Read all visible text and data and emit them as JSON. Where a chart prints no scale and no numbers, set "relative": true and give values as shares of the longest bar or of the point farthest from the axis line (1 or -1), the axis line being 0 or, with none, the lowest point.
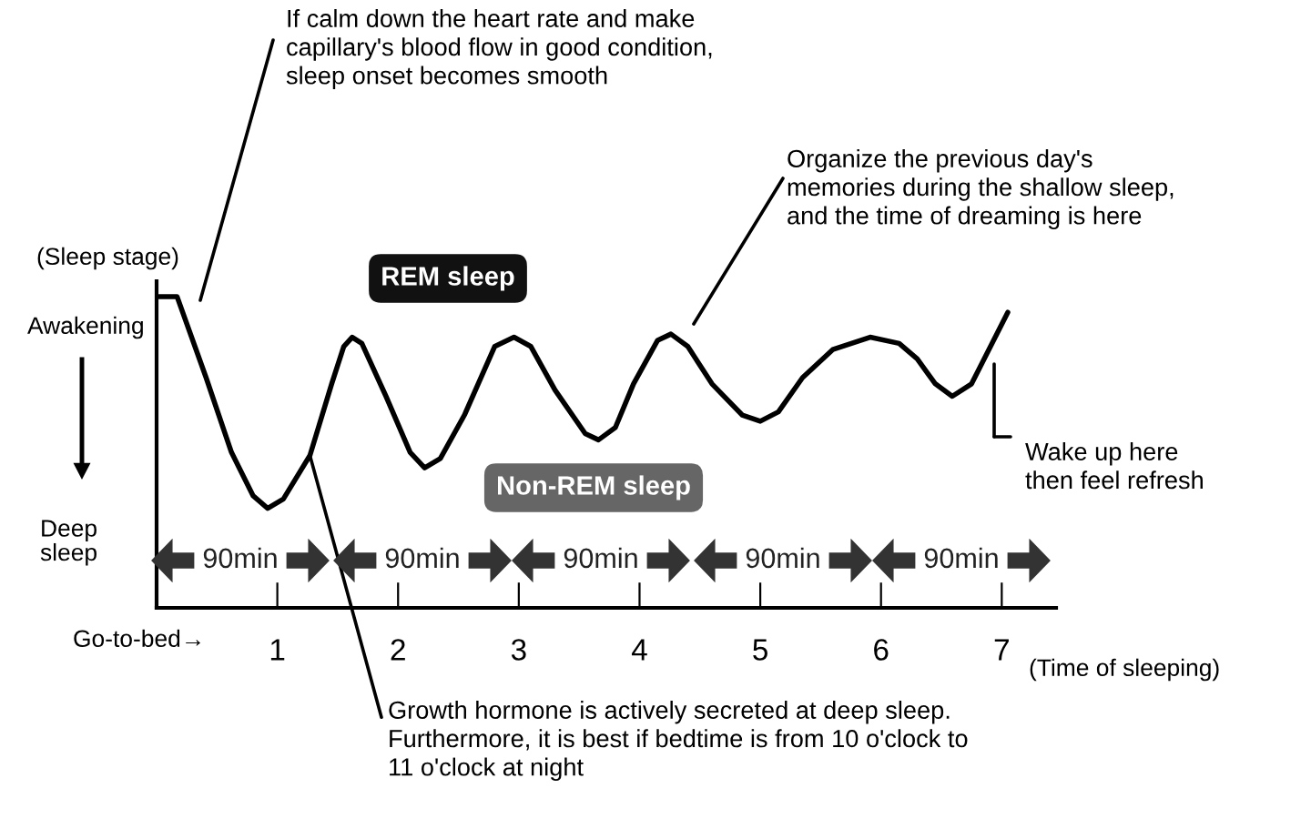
{
  "chart_data": {
    "type": "line",
    "relative": true,
    "color": "#000000",
    "x": [
      0.02,
      0.17,
      0.41,
      0.62,
      0.8,
      0.92,
      1.05,
      1.27,
      1.45,
      1.55,
      1.62,
      1.7,
      1.9,
      2.1,
      2.22,
      2.35,
      2.55,
      2.8,
      2.96,
      3.1,
      3.3,
      3.55,
      3.66,
      3.8,
      3.95,
      4.15,
      4.26,
      4.4,
      4.6,
      4.85,
      5.0,
      5.15,
      5.35,
      5.6,
      5.91,
      6.15,
      6.3,
      6.45,
      6.59,
      6.75,
      7.05
    ],
    "values": [
      1.0,
      1.0,
      0.74,
      0.5,
      0.36,
      0.32,
      0.35,
      0.49,
      0.72,
      0.84,
      0.87,
      0.85,
      0.68,
      0.5,
      0.45,
      0.48,
      0.62,
      0.84,
      0.87,
      0.84,
      0.7,
      0.56,
      0.54,
      0.58,
      0.72,
      0.86,
      0.88,
      0.84,
      0.72,
      0.62,
      0.6,
      0.63,
      0.74,
      0.83,
      0.87,
      0.85,
      0.8,
      0.72,
      0.68,
      0.72,
      0.95
    ],
    "xlim": [
      0,
      7.45
    ],
    "xticks": [
      1,
      2,
      3,
      4,
      5,
      6,
      7
    ],
    "xlabel": "(Time of sleeping)",
    "ylabel": "(Sleep stage)",
    "annotations": [
      "If calm down the heart rate and make\ncapillary's blood flow in good condition,\nsleep onset becomes smooth",
      "Organize the previous day's\nmemories during the shallow sleep,\nand the time of dreaming is here",
      "Wake up here\nthen feel refresh",
      {
        "text": "Growth hormone is actively secreted at deep sleep.\nFurthermore, it is best if bedtime is from 10 o'clock to\n11 o'clock at night",
        "x": 1.27,
        "y": 0.49
      },
      "REM sleep",
      "Non-REM sleep",
      "Awakening",
      "Deep\nsleep",
      "Go-to-bed→",
      "90min",
      "90min",
      "90min",
      "90min",
      "90min"
    ]
  }
}
